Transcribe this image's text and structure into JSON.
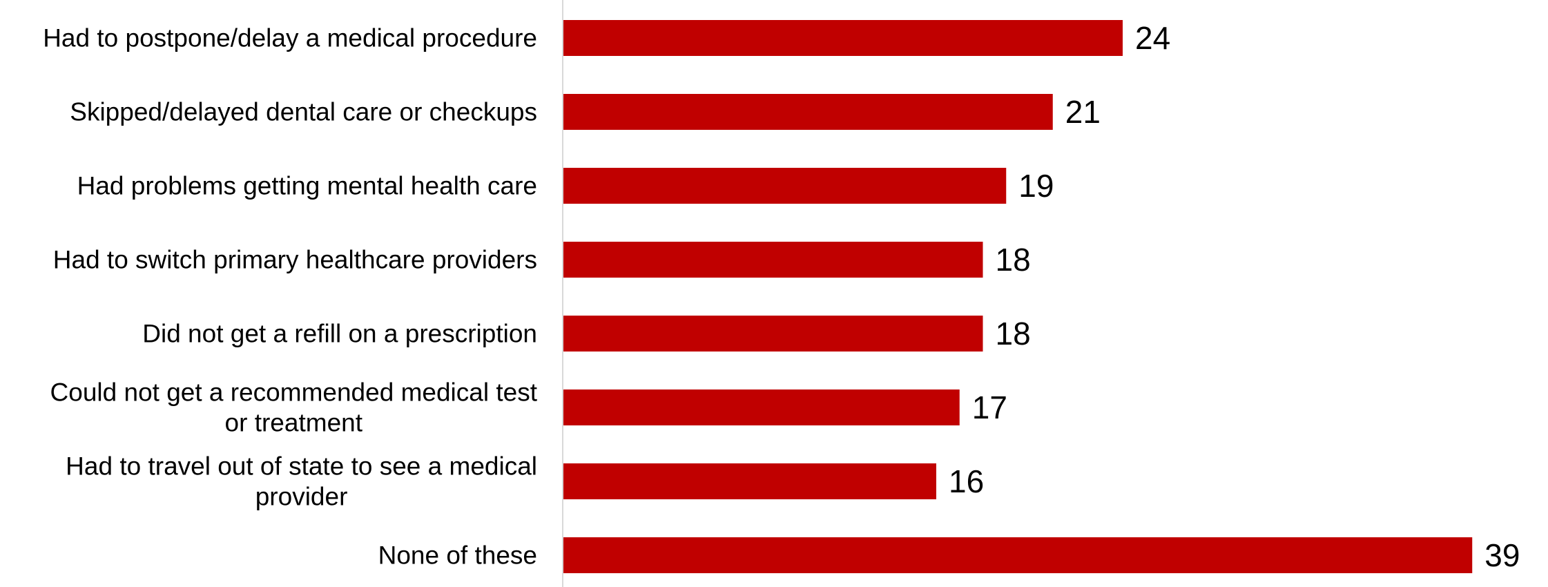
{
  "chart_data": {
    "type": "bar",
    "orientation": "horizontal",
    "categories": [
      "Had to postpone/delay a medical procedure",
      "Skipped/delayed dental care or checkups",
      "Had problems getting mental health care",
      "Had to switch primary healthcare providers",
      "Did not get a refill on a prescription",
      "Could not get a recommended medical test or treatment",
      "Had to travel out of state to see a medical provider",
      "None of these"
    ],
    "category_lines": [
      [
        "Had to postpone/delay a medical procedure"
      ],
      [
        "Skipped/delayed dental care or checkups"
      ],
      [
        "Had problems getting mental health care"
      ],
      [
        "Had to switch primary healthcare providers"
      ],
      [
        "Did not get a refill on a prescription"
      ],
      [
        "Could not get a recommended medical test",
        "or treatment"
      ],
      [
        "Had to travel out of state to see a medical",
        "provider"
      ],
      [
        "None of these"
      ]
    ],
    "values": [
      24,
      21,
      19,
      18,
      18,
      17,
      16,
      39
    ],
    "data_labels": [
      "24",
      "21",
      "19",
      "18",
      "18",
      "17",
      "16",
      "39"
    ],
    "xlim": [
      0,
      40
    ],
    "title": "",
    "xlabel": "",
    "ylabel": "",
    "grid": false,
    "legend": "none",
    "colors": {
      "bar": "#c00000",
      "axis": "#d9d9d9",
      "text": "#000000"
    }
  }
}
